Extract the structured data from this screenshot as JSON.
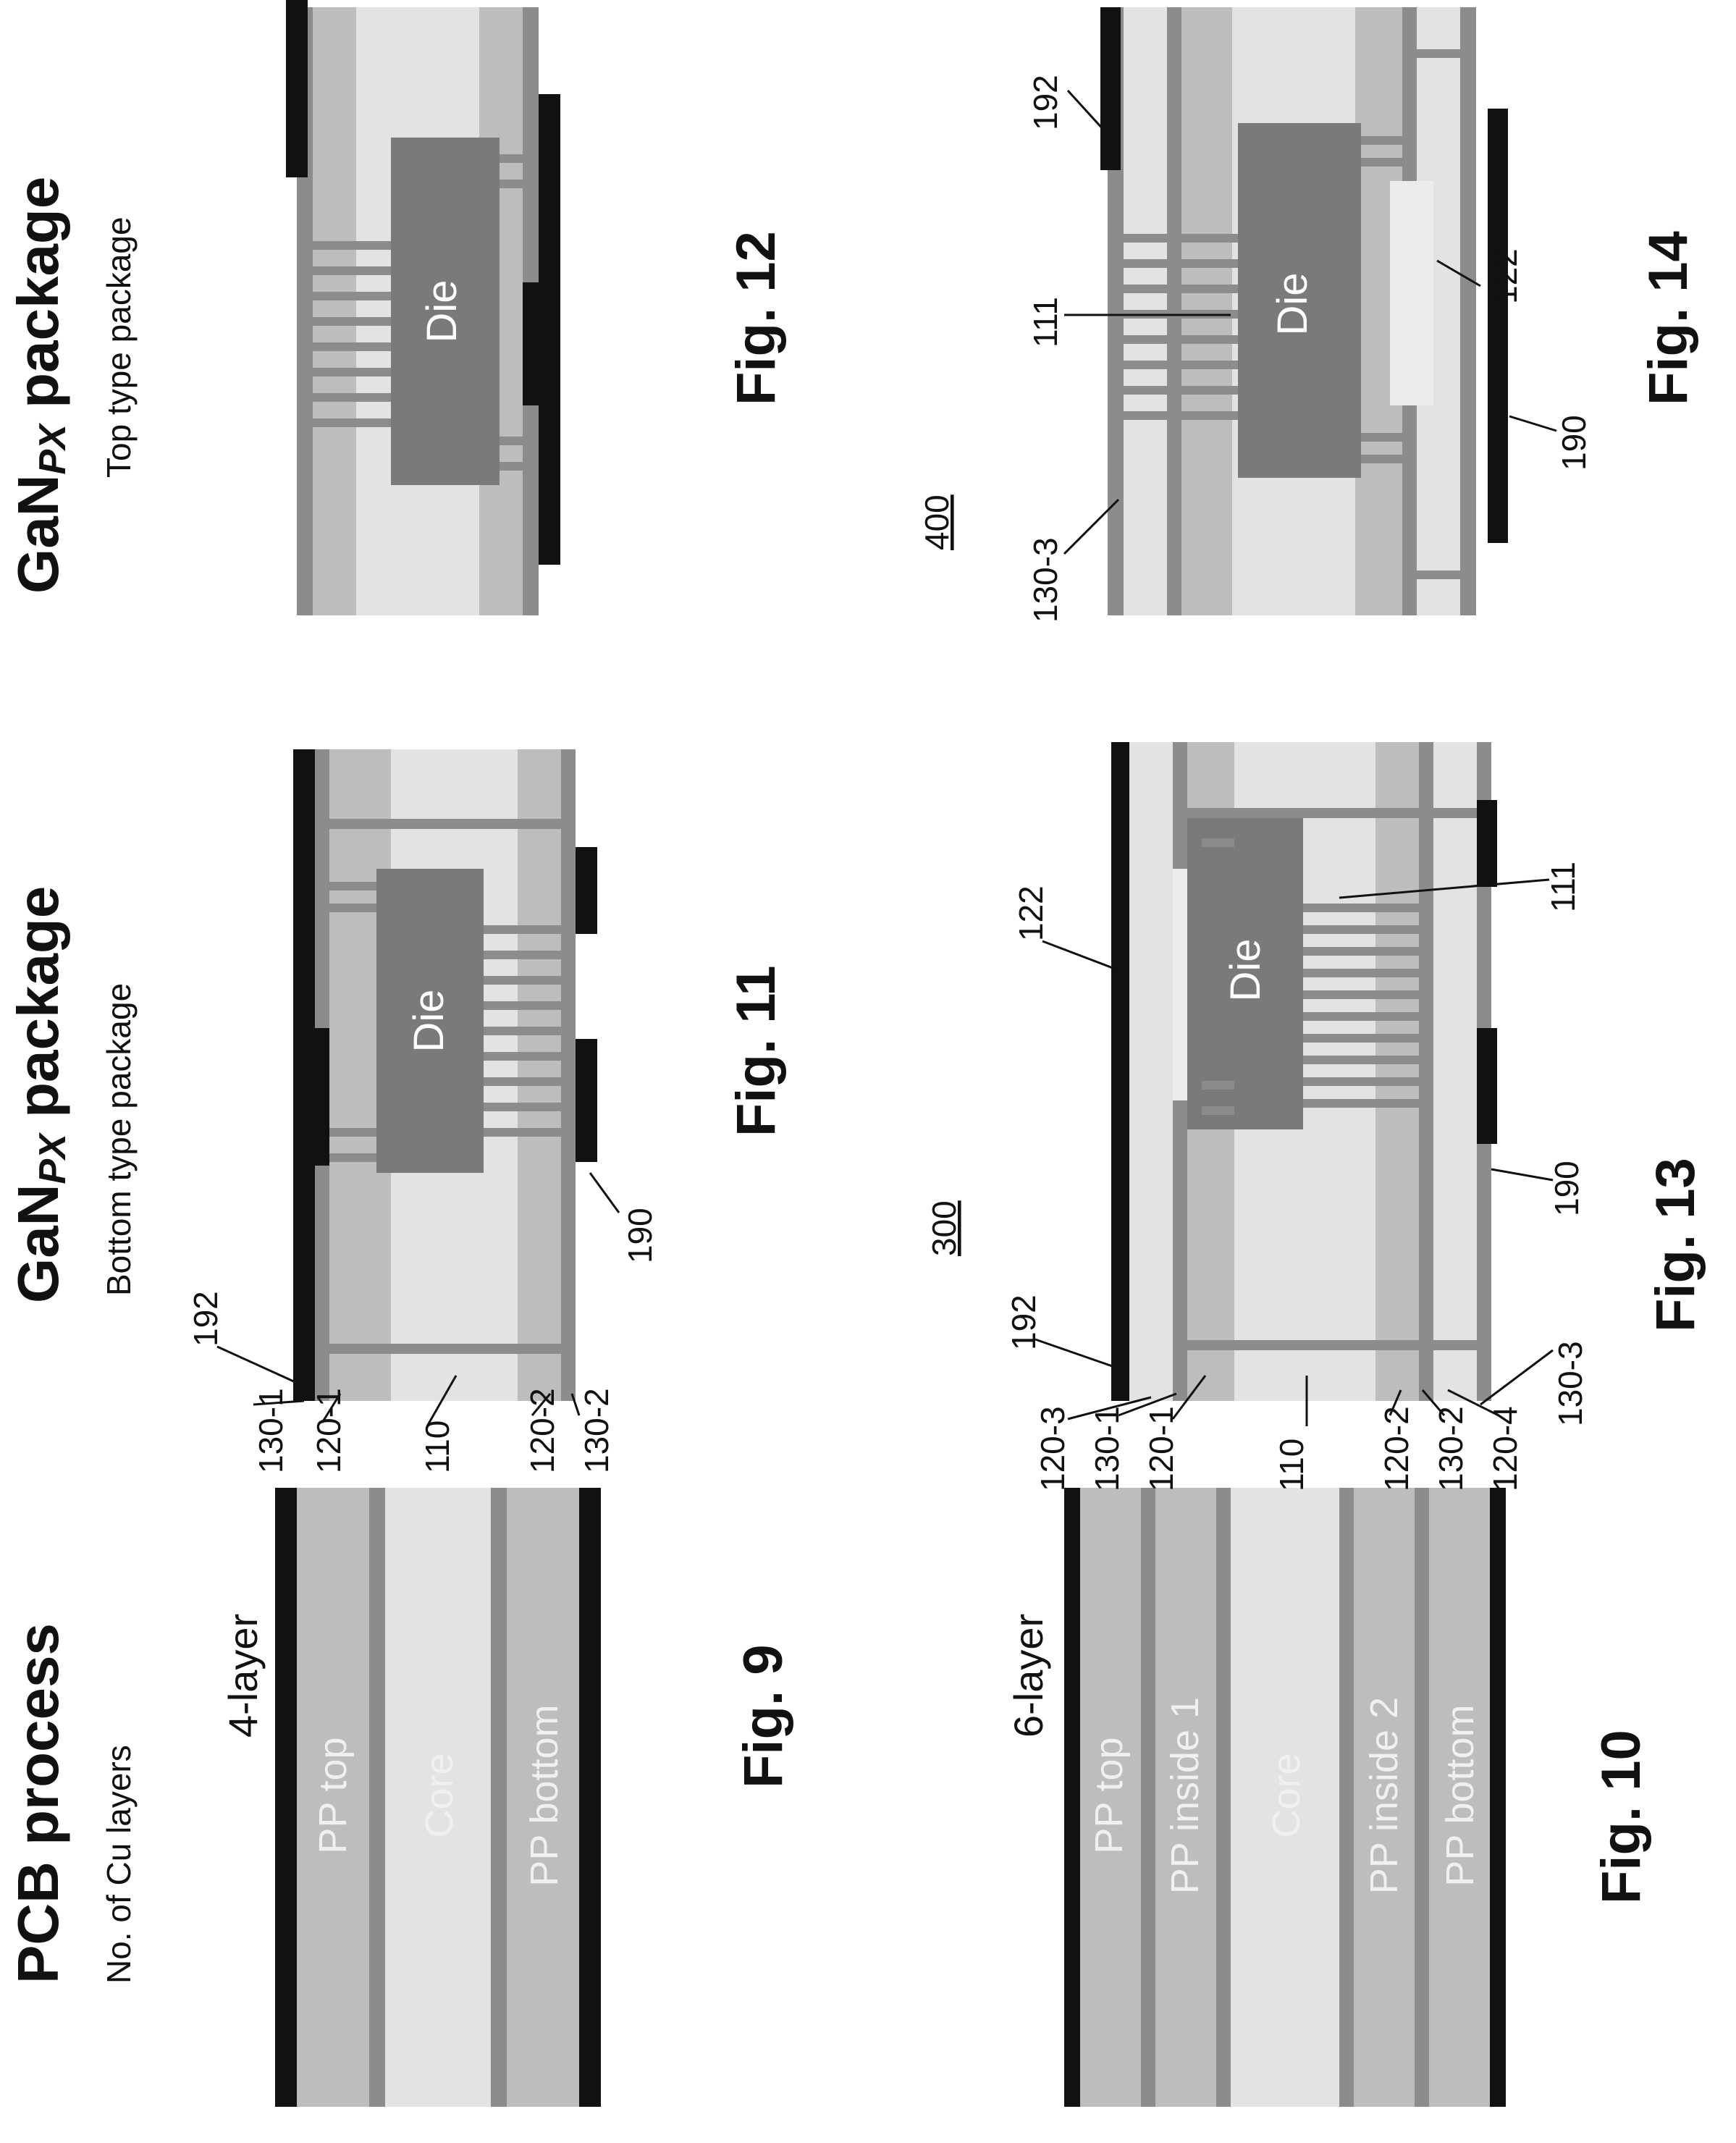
{
  "headings": {
    "pcb_title": "PCB process",
    "pcb_sub": "No. of Cu layers",
    "bottom_title": "GaNPX package",
    "bottom_title_main": "GaN",
    "bottom_title_sub": "PX",
    "bottom_title_end": " package",
    "bottom_sub": "Bottom type package",
    "top_title_main": "GaN",
    "top_title_sub": "PX",
    "top_title_end": " package",
    "top_sub": "Top type package"
  },
  "figures": {
    "fig9": "Fig. 9",
    "fig10": "Fig. 10",
    "fig11": "Fig. 11",
    "fig12": "Fig. 12",
    "fig13": "Fig. 13",
    "fig14": "Fig. 14"
  },
  "layer_names": {
    "four": "4-layer",
    "six": "6-layer"
  },
  "fig9_layers": [
    "PP top",
    "Core",
    "PP bottom"
  ],
  "fig10_layers": [
    "PP top",
    "PP inside 1",
    "Core",
    "PP inside 2",
    "PP bottom"
  ],
  "die_label": "Die",
  "assembly_refs": {
    "fig13": "300",
    "fig14": "400"
  },
  "fig11_refs": [
    "130-1",
    "120-1",
    "110",
    "120-2",
    "130-2",
    "192",
    "190"
  ],
  "fig13_refs": [
    "120-3",
    "130-1",
    "120-1",
    "110",
    "120-2",
    "130-2",
    "120-4",
    "130-3",
    "192",
    "122",
    "111",
    "190"
  ],
  "fig14_refs": [
    "130-3",
    "111",
    "192",
    "122",
    "190"
  ],
  "colors": {
    "copper_black": "#111111",
    "inner_copper": "#8c8c8c",
    "prepreg": "#bdbdbd",
    "core": "#e3e3e3",
    "die": "#7a7a7a",
    "cavity": "#ececec"
  }
}
